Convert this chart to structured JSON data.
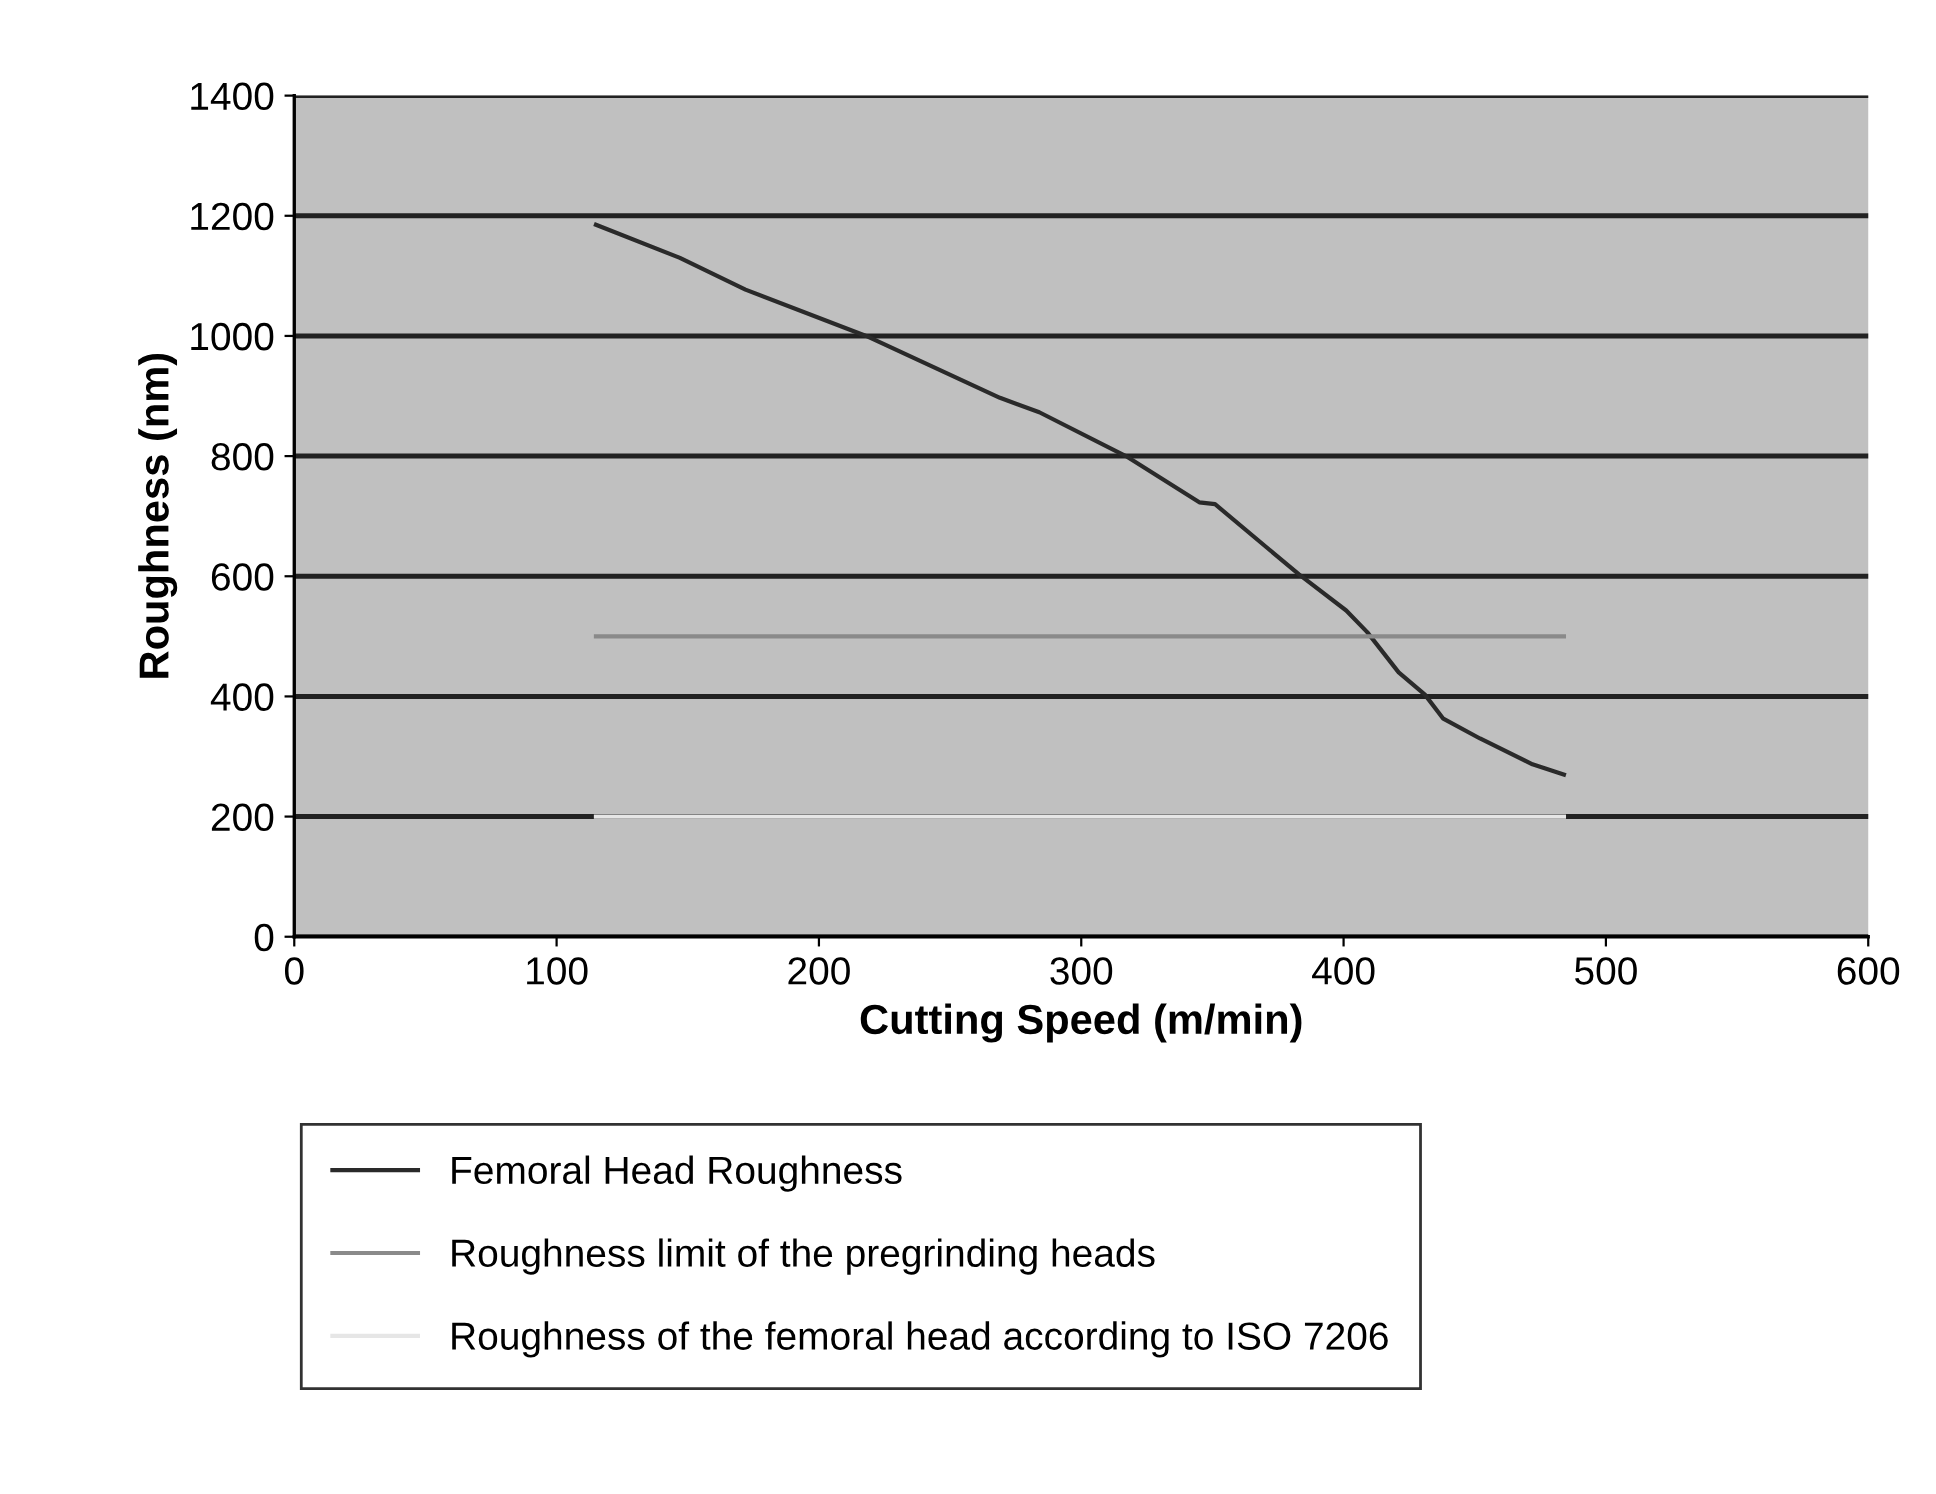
{
  "chart_data": {
    "type": "line",
    "xlabel": "Cutting Speed (m/min)",
    "ylabel": "Roughness (nm)",
    "xlim": [
      0,
      600
    ],
    "xticks": [
      0,
      100,
      200,
      300,
      400,
      500,
      600
    ],
    "ylim": [
      0,
      1400
    ],
    "yticks": [
      0,
      200,
      400,
      600,
      800,
      1000,
      1200,
      1400
    ],
    "grid": "y",
    "legend": "bottom",
    "marker": "none",
    "line_style": "solid",
    "series": [
      {
        "name": "Femoral Head Roughness",
        "color": "#2a2a2a",
        "x": [
          115,
          147,
          172,
          218,
          269,
          284,
          317,
          345,
          351,
          383,
          401,
          409,
          421,
          431,
          438,
          452,
          472,
          484
        ],
        "values": [
          1185,
          1130,
          1077,
          1000,
          897,
          873,
          800,
          723,
          720,
          603,
          543,
          507,
          440,
          403,
          363,
          330,
          287,
          270
        ]
      },
      {
        "name": "Roughness limit of the pregrinding heads",
        "color": "#8a8a8a",
        "x": [
          115,
          484
        ],
        "values": [
          500,
          500
        ]
      },
      {
        "name": "Roughness of the femoral head according to ISO 7206",
        "color": "#e6e6e6",
        "x": [
          115,
          484
        ],
        "values": [
          200,
          200
        ]
      }
    ]
  }
}
